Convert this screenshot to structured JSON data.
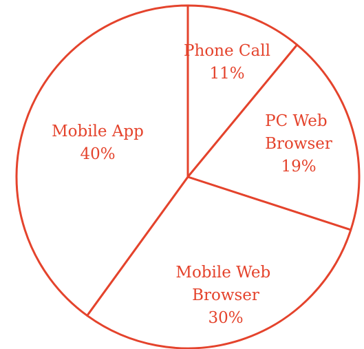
{
  "chart_data": {
    "type": "pie",
    "categories": [
      "Phone Call",
      "PC Web Browser",
      "Mobile Web Browser",
      "Mobile App"
    ],
    "values": [
      11,
      19,
      30,
      40
    ],
    "value_labels": [
      "11%",
      "19%",
      "30%",
      "40%"
    ],
    "color": "#e4432c"
  }
}
